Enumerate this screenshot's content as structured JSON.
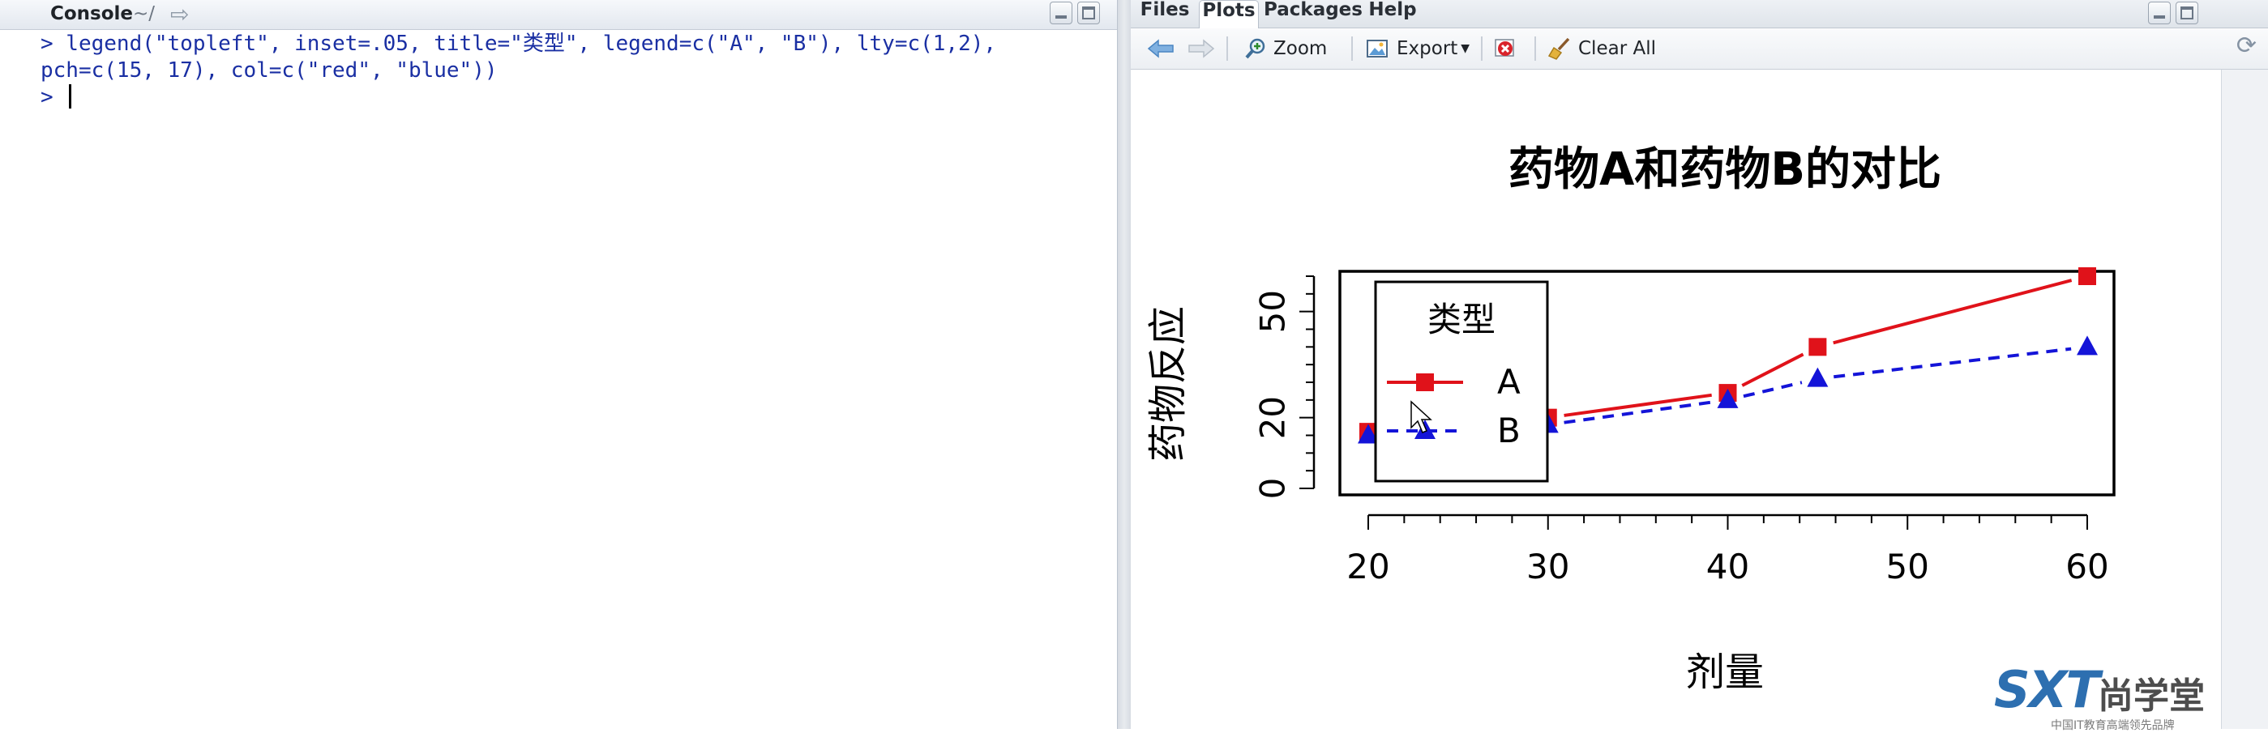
{
  "console": {
    "title": "Console",
    "path": "~/",
    "lines": [
      "> legend(\"topleft\", inset=.05, title=\"类型\", legend=c(\"A\", \"B\"), lty=c(1,2),",
      "pch=c(15, 17), col=c(\"red\", \"blue\"))"
    ],
    "prompt": "> "
  },
  "plots_pane": {
    "tabs": [
      {
        "label": "Files",
        "active": false
      },
      {
        "label": "Plots",
        "active": true
      },
      {
        "label": "Packages",
        "active": false
      },
      {
        "label": "Help",
        "active": false
      }
    ],
    "toolbar": {
      "zoom_label": "Zoom",
      "export_label": "Export",
      "clear_label": "Clear All"
    }
  },
  "chart_data": {
    "type": "line",
    "title": "药物A和药物B的对比",
    "xlabel": "剂量",
    "ylabel": "药物反应",
    "x": [
      20,
      30,
      40,
      45,
      60
    ],
    "xticks": [
      20,
      30,
      40,
      50,
      60
    ],
    "yticks": [
      0,
      20,
      50
    ],
    "xlim": [
      20,
      60
    ],
    "ylim": [
      0,
      60
    ],
    "series": [
      {
        "name": "A",
        "values": [
          16,
          20,
          27,
          40,
          60
        ],
        "color": "#e0121a",
        "line": "solid",
        "marker": "square"
      },
      {
        "name": "B",
        "values": [
          15,
          18,
          25,
          31,
          40
        ],
        "color": "#1414d8",
        "line": "dashed",
        "marker": "triangle"
      }
    ],
    "legend": {
      "title": "类型",
      "position": "top-left",
      "entries": [
        "A",
        "B"
      ]
    }
  },
  "watermark": {
    "logo": "SXT",
    "name": "尚学堂",
    "slogan": "中国IT教育高端领先品牌"
  }
}
